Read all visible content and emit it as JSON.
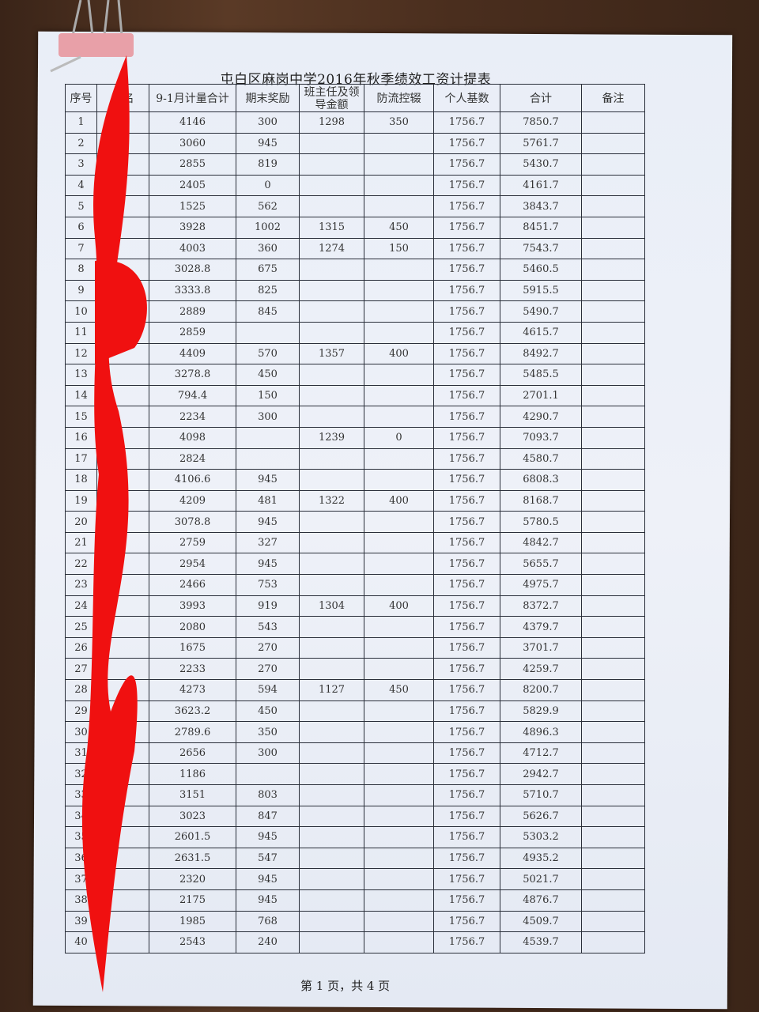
{
  "document": {
    "title": "屯白区麻岗中学2016年秋季绩效工资计提表",
    "footer": "第 1 页，共 4 页",
    "columns": [
      "序号",
      "姓名",
      "9-1月计量合计",
      "期末奖励",
      "班主任及领导金额",
      "防流控辍",
      "个人基数",
      "合计",
      "备注"
    ],
    "rows": [
      [
        "1",
        "",
        "4146",
        "300",
        "1298",
        "350",
        "1756.7",
        "7850.7",
        ""
      ],
      [
        "2",
        "",
        "3060",
        "945",
        "",
        "",
        "1756.7",
        "5761.7",
        ""
      ],
      [
        "3",
        "",
        "2855",
        "819",
        "",
        "",
        "1756.7",
        "5430.7",
        ""
      ],
      [
        "4",
        "",
        "2405",
        "0",
        "",
        "",
        "1756.7",
        "4161.7",
        ""
      ],
      [
        "5",
        "",
        "1525",
        "562",
        "",
        "",
        "1756.7",
        "3843.7",
        ""
      ],
      [
        "6",
        "",
        "3928",
        "1002",
        "1315",
        "450",
        "1756.7",
        "8451.7",
        ""
      ],
      [
        "7",
        "",
        "4003",
        "360",
        "1274",
        "150",
        "1756.7",
        "7543.7",
        ""
      ],
      [
        "8",
        "",
        "3028.8",
        "675",
        "",
        "",
        "1756.7",
        "5460.5",
        ""
      ],
      [
        "9",
        "",
        "3333.8",
        "825",
        "",
        "",
        "1756.7",
        "5915.5",
        ""
      ],
      [
        "10",
        "",
        "2889",
        "845",
        "",
        "",
        "1756.7",
        "5490.7",
        ""
      ],
      [
        "11",
        "",
        "2859",
        "",
        "",
        "",
        "1756.7",
        "4615.7",
        ""
      ],
      [
        "12",
        "",
        "4409",
        "570",
        "1357",
        "400",
        "1756.7",
        "8492.7",
        ""
      ],
      [
        "13",
        "",
        "3278.8",
        "450",
        "",
        "",
        "1756.7",
        "5485.5",
        ""
      ],
      [
        "14",
        "",
        "794.4",
        "150",
        "",
        "",
        "1756.7",
        "2701.1",
        ""
      ],
      [
        "15",
        "",
        "2234",
        "300",
        "",
        "",
        "1756.7",
        "4290.7",
        ""
      ],
      [
        "16",
        "",
        "4098",
        "",
        "1239",
        "0",
        "1756.7",
        "7093.7",
        ""
      ],
      [
        "17",
        "",
        "2824",
        "",
        "",
        "",
        "1756.7",
        "4580.7",
        ""
      ],
      [
        "18",
        "",
        "4106.6",
        "945",
        "",
        "",
        "1756.7",
        "6808.3",
        ""
      ],
      [
        "19",
        "",
        "4209",
        "481",
        "1322",
        "400",
        "1756.7",
        "8168.7",
        ""
      ],
      [
        "20",
        "",
        "3078.8",
        "945",
        "",
        "",
        "1756.7",
        "5780.5",
        ""
      ],
      [
        "21",
        "",
        "2759",
        "327",
        "",
        "",
        "1756.7",
        "4842.7",
        ""
      ],
      [
        "22",
        "",
        "2954",
        "945",
        "",
        "",
        "1756.7",
        "5655.7",
        ""
      ],
      [
        "23",
        "",
        "2466",
        "753",
        "",
        "",
        "1756.7",
        "4975.7",
        ""
      ],
      [
        "24",
        "",
        "3993",
        "919",
        "1304",
        "400",
        "1756.7",
        "8372.7",
        ""
      ],
      [
        "25",
        "",
        "2080",
        "543",
        "",
        "",
        "1756.7",
        "4379.7",
        ""
      ],
      [
        "26",
        "",
        "1675",
        "270",
        "",
        "",
        "1756.7",
        "3701.7",
        ""
      ],
      [
        "27",
        "",
        "2233",
        "270",
        "",
        "",
        "1756.7",
        "4259.7",
        ""
      ],
      [
        "28",
        "",
        "4273",
        "594",
        "1127",
        "450",
        "1756.7",
        "8200.7",
        ""
      ],
      [
        "29",
        "",
        "3623.2",
        "450",
        "",
        "",
        "1756.7",
        "5829.9",
        ""
      ],
      [
        "30",
        "",
        "2789.6",
        "350",
        "",
        "",
        "1756.7",
        "4896.3",
        ""
      ],
      [
        "31",
        "",
        "2656",
        "300",
        "",
        "",
        "1756.7",
        "4712.7",
        ""
      ],
      [
        "32",
        "",
        "1186",
        "",
        "",
        "",
        "1756.7",
        "2942.7",
        ""
      ],
      [
        "33",
        "",
        "3151",
        "803",
        "",
        "",
        "1756.7",
        "5710.7",
        ""
      ],
      [
        "34",
        "",
        "3023",
        "847",
        "",
        "",
        "1756.7",
        "5626.7",
        ""
      ],
      [
        "35",
        "",
        "2601.5",
        "945",
        "",
        "",
        "1756.7",
        "5303.2",
        ""
      ],
      [
        "36",
        "",
        "2631.5",
        "547",
        "",
        "",
        "1756.7",
        "4935.2",
        ""
      ],
      [
        "37",
        "",
        "2320",
        "945",
        "",
        "",
        "1756.7",
        "5021.7",
        ""
      ],
      [
        "38",
        "",
        "2175",
        "945",
        "",
        "",
        "1756.7",
        "4876.7",
        ""
      ],
      [
        "39",
        "",
        "1985",
        "768",
        "",
        "",
        "1756.7",
        "4509.7",
        ""
      ],
      [
        "40",
        "",
        "2543",
        "240",
        "",
        "",
        "1756.7",
        "4539.7",
        ""
      ]
    ]
  },
  "colors": {
    "redaction": "#f01010",
    "paper": "#eaeef7",
    "binder_clip": "#e8a0a8"
  }
}
